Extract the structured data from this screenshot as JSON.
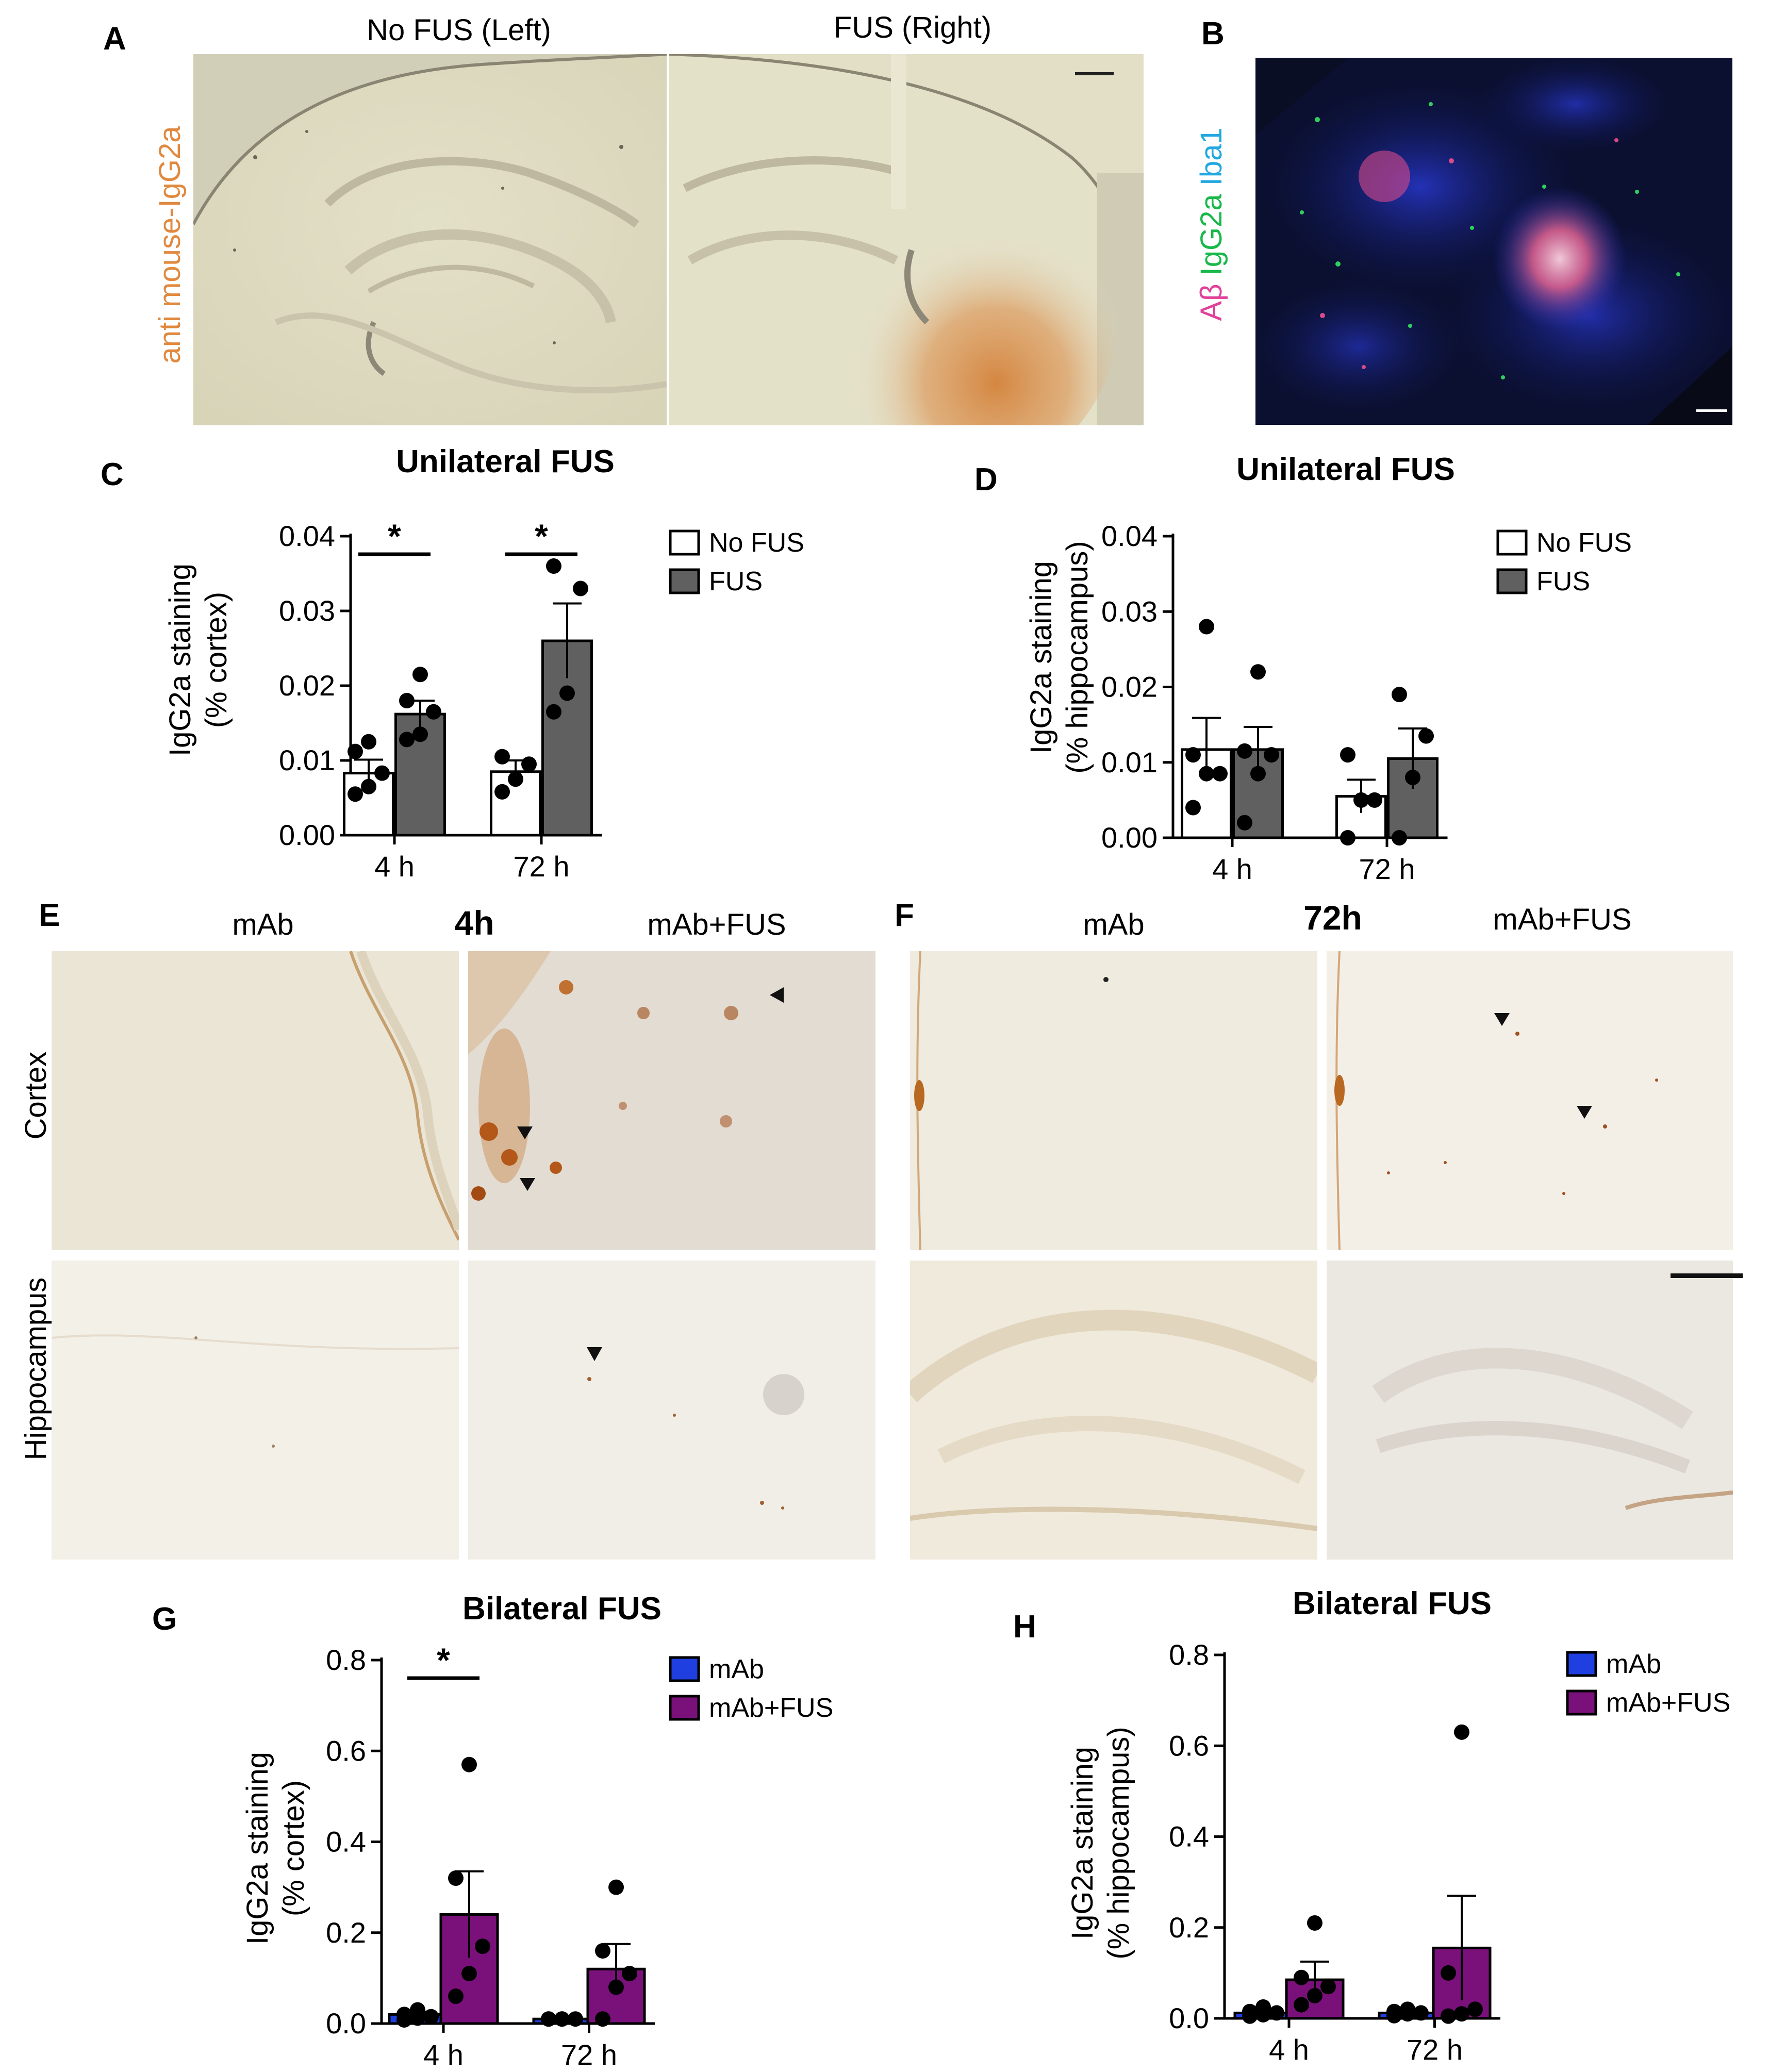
{
  "panels": {
    "A": {
      "letter": "A",
      "left_caption": "No FUS (Left)",
      "right_caption": "FUS (Right)",
      "stain_label": "anti mouse-IgG2a"
    },
    "B": {
      "letter": "B",
      "label_abeta": "Aβ",
      "label_igg2a": "IgG2a",
      "label_iba1": "Iba1",
      "color_abeta": "#e0409a",
      "color_igg2a": "#19b84a",
      "color_iba1": "#22a8e0"
    },
    "C": {
      "letter": "C"
    },
    "D": {
      "letter": "D"
    },
    "E": {
      "letter": "E",
      "time": "4h",
      "col_left": "mAb",
      "col_right": "mAb+FUS",
      "row_top": "Cortex",
      "row_bottom": "Hippocampus"
    },
    "F": {
      "letter": "F",
      "time": "72h",
      "col_left": "mAb",
      "col_right": "mAb+FUS"
    },
    "G": {
      "letter": "G"
    },
    "H": {
      "letter": "H"
    }
  },
  "chart_data": [
    {
      "id": "C",
      "type": "bar",
      "title": "Unilateral FUS",
      "ylabel_line1": "IgG2a staining",
      "ylabel_line2": "(% cortex)",
      "categories": [
        "4 h",
        "72 h"
      ],
      "ylim": [
        0,
        0.04
      ],
      "yticks": [
        "0.00",
        "0.01",
        "0.02",
        "0.03",
        "0.04"
      ],
      "series": [
        {
          "name": "No FUS",
          "color": "#ffffff",
          "values": [
            0.0083,
            0.0085
          ],
          "errors": [
            0.0018,
            0.0015
          ],
          "points": [
            [
              0.0055,
              0.0065,
              0.0083,
              0.0112,
              0.0125
            ],
            [
              0.0058,
              0.0075,
              0.0095,
              0.0105
            ]
          ]
        },
        {
          "name": "FUS",
          "color": "#606060",
          "values": [
            0.0162,
            0.026
          ],
          "errors": [
            0.0018,
            0.005
          ],
          "points": [
            [
              0.0128,
              0.0135,
              0.0165,
              0.018,
              0.0215
            ],
            [
              0.0165,
              0.019,
              0.033,
              0.036
            ]
          ]
        }
      ],
      "significance": [
        "*",
        "*"
      ],
      "legend": "top-right"
    },
    {
      "id": "D",
      "type": "bar",
      "title": "Unilateral FUS",
      "ylabel_line1": "IgG2a staining",
      "ylabel_line2": "(% hippocampus)",
      "categories": [
        "4 h",
        "72 h"
      ],
      "ylim": [
        0,
        0.04
      ],
      "yticks": [
        "0.00",
        "0.01",
        "0.02",
        "0.03",
        "0.04"
      ],
      "series": [
        {
          "name": "No FUS",
          "color": "#ffffff",
          "values": [
            0.0117,
            0.0055
          ],
          "errors": [
            0.0042,
            0.0022
          ],
          "points": [
            [
              0.004,
              0.0085,
              0.0085,
              0.011,
              0.028
            ],
            [
              0.0,
              0.005,
              0.005,
              0.011
            ]
          ]
        },
        {
          "name": "FUS",
          "color": "#606060",
          "values": [
            0.0117,
            0.0105
          ],
          "errors": [
            0.003,
            0.004
          ],
          "points": [
            [
              0.002,
              0.0085,
              0.011,
              0.0115,
              0.022
            ],
            [
              0.0,
              0.008,
              0.0135,
              0.019
            ]
          ]
        }
      ],
      "significance": [
        "",
        ""
      ],
      "legend": "top-right"
    },
    {
      "id": "G",
      "type": "bar",
      "title": "Bilateral FUS",
      "ylabel_line1": "IgG2a staining",
      "ylabel_line2": "(% cortex)",
      "categories": [
        "4 h",
        "72 h"
      ],
      "ylim": [
        0,
        0.8
      ],
      "yticks": [
        "0.0",
        "0.2",
        "0.4",
        "0.6",
        "0.8"
      ],
      "series": [
        {
          "name": "mAb",
          "color": "#1f3fe0",
          "values": [
            0.02,
            0.01
          ],
          "errors": [
            0.006,
            0.002
          ],
          "points": [
            [
              0.008,
              0.012,
              0.015,
              0.02,
              0.03
            ],
            [
              0.01,
              0.01,
              0.01,
              0.01,
              0.01
            ]
          ]
        },
        {
          "name": "mAb+FUS",
          "color": "#7a117a",
          "values": [
            0.24,
            0.12
          ],
          "errors": [
            0.095,
            0.055
          ],
          "points": [
            [
              0.06,
              0.11,
              0.17,
              0.32,
              0.57
            ],
            [
              0.01,
              0.08,
              0.11,
              0.16,
              0.3
            ]
          ]
        }
      ],
      "significance": [
        "*",
        ""
      ],
      "legend": "top-right"
    },
    {
      "id": "H",
      "type": "bar",
      "title": "Bilateral FUS",
      "ylabel_line1": "IgG2a staining",
      "ylabel_line2": "(% hippocampus)",
      "categories": [
        "4 h",
        "72 h"
      ],
      "ylim": [
        0,
        0.8
      ],
      "yticks": [
        "0.0",
        "0.2",
        "0.4",
        "0.6",
        "0.8"
      ],
      "series": [
        {
          "name": "mAb",
          "color": "#1f3fe0",
          "values": [
            0.012,
            0.012
          ],
          "errors": [
            0.004,
            0.003
          ],
          "points": [
            [
              0.005,
              0.008,
              0.012,
              0.015,
              0.025
            ],
            [
              0.006,
              0.01,
              0.012,
              0.015,
              0.02
            ]
          ]
        },
        {
          "name": "mAb+FUS",
          "color": "#7a117a",
          "values": [
            0.085,
            0.155
          ],
          "errors": [
            0.04,
            0.115
          ],
          "points": [
            [
              0.03,
              0.05,
              0.07,
              0.09,
              0.21
            ],
            [
              0.005,
              0.01,
              0.02,
              0.1,
              0.63
            ]
          ]
        }
      ],
      "significance": [
        "",
        ""
      ],
      "legend": "top-right"
    }
  ]
}
